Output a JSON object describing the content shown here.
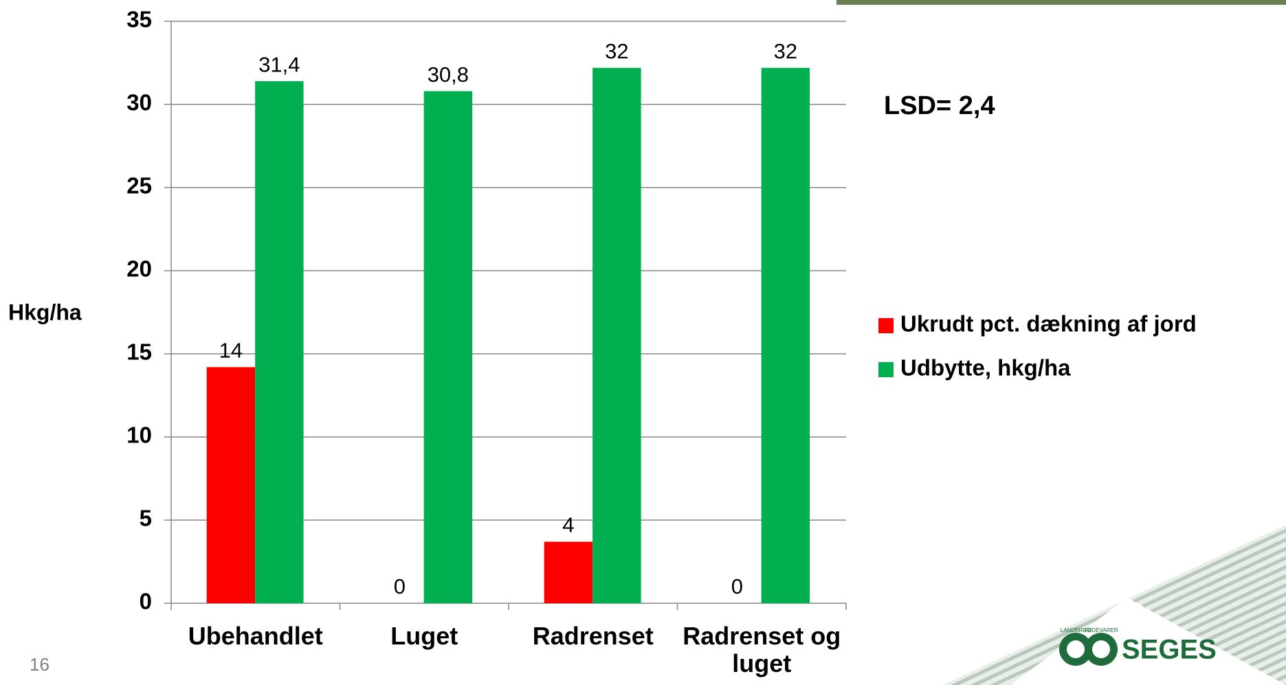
{
  "chart_data": {
    "type": "bar",
    "y_label": "Hkg/ha",
    "annotation": "LSD= 2,4",
    "categories": [
      "Ubehandlet",
      "Luget",
      "Radrenset",
      "Radrenset og luget"
    ],
    "series": [
      {
        "name": "Ukrudt pct. dækning af jord",
        "color": "#ff0000",
        "values": [
          14.2,
          0,
          3.7,
          0
        ],
        "value_labels": [
          "14",
          "0",
          "4",
          "0"
        ]
      },
      {
        "name": "Udbytte, hkg/ha",
        "color": "#00b050",
        "values": [
          31.4,
          30.8,
          32.2,
          32.2
        ],
        "value_labels": [
          "31,4",
          "30,8",
          "32",
          "32"
        ]
      }
    ],
    "ylim": [
      0,
      35
    ],
    "yticks": [
      0,
      5,
      10,
      15,
      20,
      25,
      30,
      35
    ],
    "grid": true,
    "legend": "right"
  },
  "slide_number": "16",
  "logo": {
    "name": "SEGES",
    "top": "LANDBRUG",
    "bottom": "FØDEVARER"
  }
}
